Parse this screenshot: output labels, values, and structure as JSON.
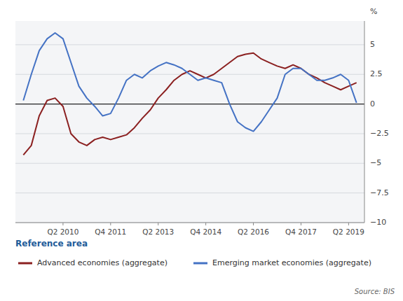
{
  "chart_data": {
    "type": "line",
    "y_label": "%",
    "legend_title": "Reference area",
    "source": "Source:  BIS",
    "grid": true,
    "legend": "bottom",
    "ylim": [
      -10,
      7
    ],
    "yticks": [
      5,
      2.5,
      0,
      {
        "value": -2.5,
        "label": "−2.5"
      },
      {
        "value": -5,
        "label": "−5"
      },
      {
        "value": -7.5,
        "label": "−7.5"
      },
      {
        "value": -10,
        "label": "−10"
      }
    ],
    "categories": [
      null,
      null,
      null,
      null,
      null,
      "Q2 2010",
      null,
      null,
      null,
      null,
      null,
      "Q4 2011",
      null,
      null,
      null,
      null,
      null,
      "Q2 2013",
      null,
      null,
      null,
      null,
      null,
      "Q4 2014",
      null,
      null,
      null,
      null,
      null,
      "Q2 2016",
      null,
      null,
      null,
      null,
      null,
      "Q4 2017",
      null,
      null,
      null,
      null,
      null,
      "Q2 2019",
      null
    ],
    "series": [
      {
        "name": "Advanced economies (aggregate)",
        "color": "#8b2020",
        "values": [
          -4.3,
          -3.5,
          -1.0,
          0.3,
          0.5,
          -0.2,
          -2.5,
          -3.2,
          -3.5,
          -3.0,
          -2.8,
          -3.0,
          -2.8,
          -2.6,
          -2.0,
          -1.2,
          -0.5,
          0.5,
          1.2,
          2.0,
          2.5,
          2.8,
          2.5,
          2.2,
          2.5,
          3.0,
          3.5,
          4.0,
          4.2,
          4.3,
          3.8,
          3.5,
          3.2,
          3.0,
          3.3,
          3.0,
          2.5,
          2.2,
          1.8,
          1.5,
          1.2,
          1.5,
          1.8
        ]
      },
      {
        "name": "Emerging market economies (aggregate)",
        "color": "#4472c4",
        "values": [
          0.3,
          2.5,
          4.5,
          5.5,
          6.0,
          5.5,
          3.5,
          1.5,
          0.5,
          -0.2,
          -1.0,
          -0.8,
          0.5,
          2.0,
          2.5,
          2.2,
          2.8,
          3.2,
          3.5,
          3.3,
          3.0,
          2.5,
          2.0,
          2.2,
          2.0,
          1.8,
          0.0,
          -1.5,
          -2.0,
          -2.3,
          -1.5,
          -0.5,
          0.5,
          2.5,
          3.0,
          3.0,
          2.5,
          2.0,
          2.0,
          2.2,
          2.5,
          2.0,
          0.1
        ]
      }
    ]
  }
}
